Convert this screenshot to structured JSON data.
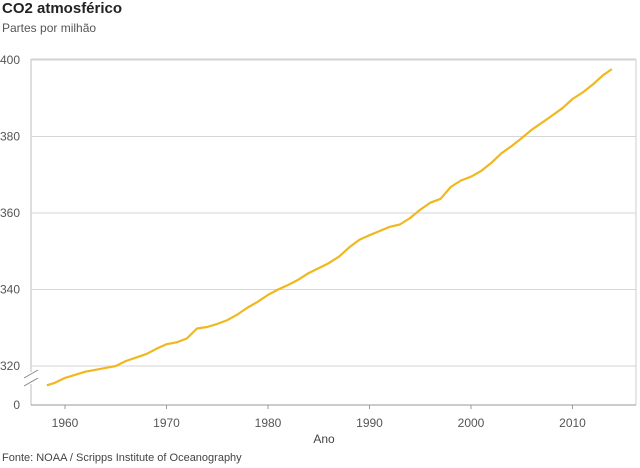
{
  "chart_data": {
    "type": "line",
    "title": "CO2 atmosférico",
    "subtitle": "Partes por milhão",
    "xlabel": "Ano",
    "ylabel": "",
    "source": "Fonte: NOAA / Scripps Institute of Oceanography",
    "x_ticks": [
      "1960",
      "1970",
      "1980",
      "1990",
      "2000",
      "2010"
    ],
    "y_ticks": [
      "0",
      "320",
      "340",
      "360",
      "380",
      "400"
    ],
    "xlim": [
      1957.5,
      2016
    ],
    "ylim": [
      310,
      400
    ],
    "axis_break": true,
    "grid": true,
    "line_color": "#f0b81f",
    "series": [
      {
        "x": [
          1958.3,
          1959,
          1960,
          1961,
          1962,
          1963,
          1964,
          1965,
          1966,
          1967,
          1968,
          1969,
          1970,
          1971,
          1972,
          1973,
          1974,
          1975,
          1976,
          1977,
          1978,
          1979,
          1980,
          1981,
          1982,
          1983,
          1984,
          1985,
          1986,
          1987,
          1988,
          1989,
          1990,
          1991,
          1992,
          1993,
          1994,
          1995,
          1996,
          1997,
          1998,
          1999,
          2000,
          2001,
          2002,
          2003,
          2004,
          2005,
          2006,
          2007,
          2008,
          2009,
          2010,
          2011,
          2012,
          2013,
          2013.8
        ],
        "y": [
          315.0,
          315.6,
          316.9,
          317.7,
          318.5,
          319.0,
          319.5,
          320.0,
          321.3,
          322.2,
          323.1,
          324.5,
          325.7,
          326.2,
          327.2,
          329.8,
          330.2,
          331.0,
          332.0,
          333.5,
          335.3,
          336.8,
          338.6,
          340.0,
          341.2,
          342.6,
          344.3,
          345.6,
          346.9,
          348.6,
          351.0,
          353.0,
          354.2,
          355.3,
          356.4,
          357.0,
          358.7,
          360.9,
          362.7,
          363.7,
          366.8,
          368.5,
          369.5,
          371.0,
          373.1,
          375.6,
          377.5,
          379.6,
          381.8,
          383.6,
          385.5,
          387.4,
          389.8,
          391.5,
          393.6,
          396.0,
          397.5
        ]
      }
    ]
  }
}
